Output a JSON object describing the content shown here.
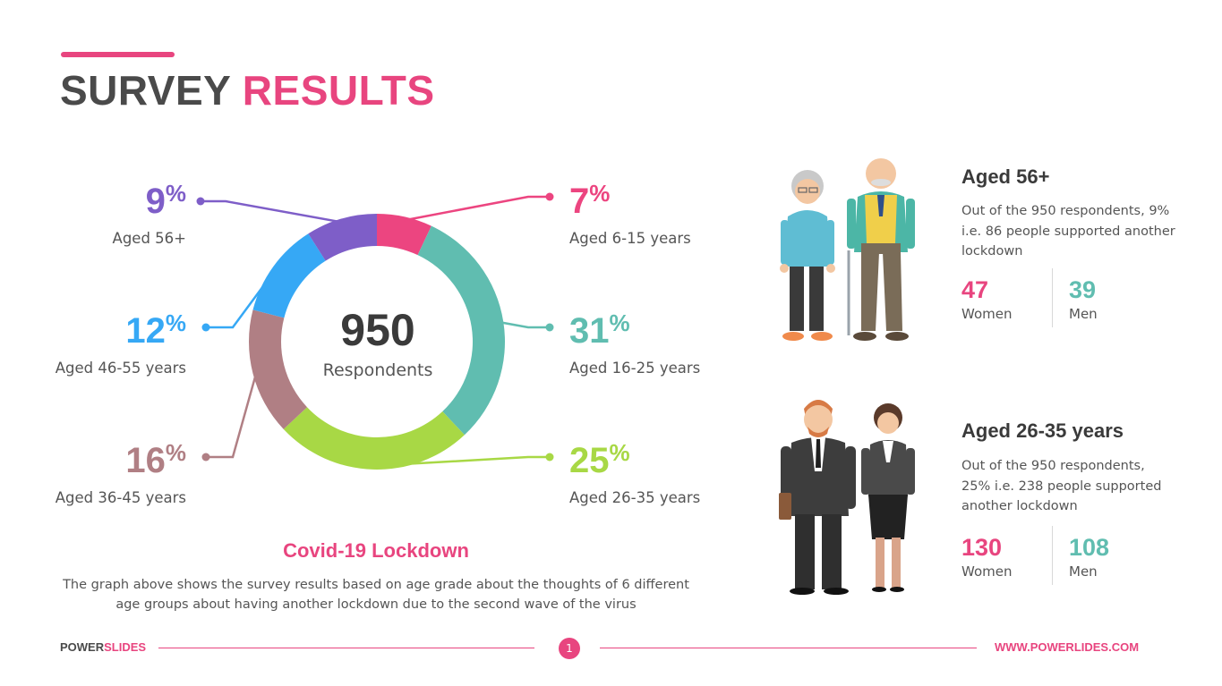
{
  "header": {
    "title_part1": "SURVEY",
    "title_part2": "RESULTS"
  },
  "chart_data": {
    "type": "donut",
    "center_value": "950",
    "center_label": "Respondents",
    "segments": [
      {
        "label": "Aged 6-15 years",
        "value": 7,
        "color": "#ec4580"
      },
      {
        "label": "Aged 16-25 years",
        "value": 31,
        "color": "#60bdb0"
      },
      {
        "label": "Aged 26-35 years",
        "value": 25,
        "color": "#a8d845"
      },
      {
        "label": "Aged 36-45 years",
        "value": 16,
        "color": "#b07f84"
      },
      {
        "label": "Aged 46-55 years",
        "value": 12,
        "color": "#36a8f5"
      },
      {
        "label": "Aged 56+",
        "value": 9,
        "color": "#7e5ec8"
      }
    ],
    "percent_symbol": "%"
  },
  "chart_caption": {
    "title": "Covid-19 Lockdown",
    "description": "The graph above shows the survey results based on age grade about the thoughts of 6 different age groups about having another lockdown due to the second wave of the virus"
  },
  "cards": [
    {
      "heading": "Aged 56+",
      "text": "Out of the 950 respondents, 9% i.e. 86 people supported another lockdown",
      "women_value": "47",
      "women_label": "Women",
      "men_value": "39",
      "men_label": "Men"
    },
    {
      "heading": "Aged 26-35 years",
      "text": "Out of the 950 respondents, 25% i.e. 238 people supported another lockdown",
      "women_value": "130",
      "women_label": "Women",
      "men_value": "108",
      "men_label": "Men"
    }
  ],
  "footer": {
    "brand_part1": "POWER",
    "brand_part2": "SLIDES",
    "page": "1",
    "url": "WWW.POWERLIDES.COM"
  },
  "colors": {
    "accent": "#e8457f",
    "women": "#e8457f",
    "men": "#60bdb0"
  }
}
